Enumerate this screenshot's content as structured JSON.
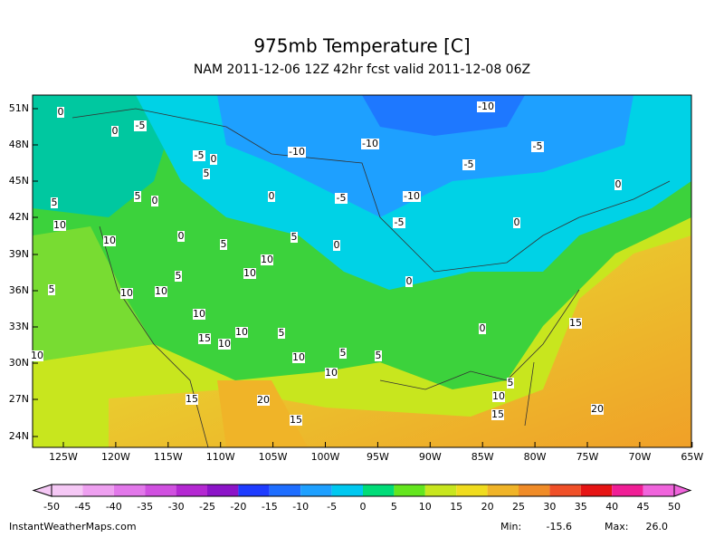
{
  "title": "975mb Temperature [C]",
  "subtitle": "NAM 2011-12-06 12Z 42hr fcst valid 2011-12-08 06Z",
  "map": {
    "lat_labels": [
      "51N",
      "48N",
      "45N",
      "42N",
      "39N",
      "36N",
      "33N",
      "30N",
      "27N",
      "24N"
    ],
    "lon_labels": [
      "125W",
      "120W",
      "115W",
      "110W",
      "105W",
      "100W",
      "95W",
      "90W",
      "85W",
      "80W",
      "75W",
      "70W",
      "65W"
    ],
    "contour_labels": [
      0,
      0,
      -5,
      -10,
      -5,
      -10,
      -10,
      -5,
      0,
      -5,
      5,
      0,
      5,
      5,
      0,
      0,
      -5,
      -10,
      -5,
      10,
      0,
      0,
      10,
      5,
      5,
      0,
      10,
      5,
      10,
      5,
      10,
      10,
      0,
      10,
      15,
      0,
      15,
      10,
      5,
      10,
      10,
      5,
      5,
      10,
      10,
      5,
      10,
      15,
      20,
      20,
      15,
      15
    ]
  },
  "colorbar": {
    "ticks": [
      -50,
      -45,
      -40,
      -35,
      -30,
      -25,
      -20,
      -15,
      -10,
      -5,
      0,
      5,
      10,
      15,
      20,
      25,
      30,
      35,
      40,
      45,
      50
    ],
    "colors": [
      "#f5c8f5",
      "#eea0f0",
      "#e278ea",
      "#d050e0",
      "#b428d2",
      "#8c14c8",
      "#1e3cff",
      "#1e6eff",
      "#1ea0ff",
      "#00c8f0",
      "#00dc78",
      "#64e61e",
      "#c8e61e",
      "#f0dc1e",
      "#f0b428",
      "#f08c28",
      "#f05028",
      "#e61414",
      "#f01e96",
      "#f064dc"
    ]
  },
  "footer": {
    "site": "InstantWeatherMaps.com",
    "min_label": "Min:",
    "min": -15.6,
    "max_label": "Max:",
    "max": {
      "value": 26.0,
      "label": "26.0"
    }
  }
}
